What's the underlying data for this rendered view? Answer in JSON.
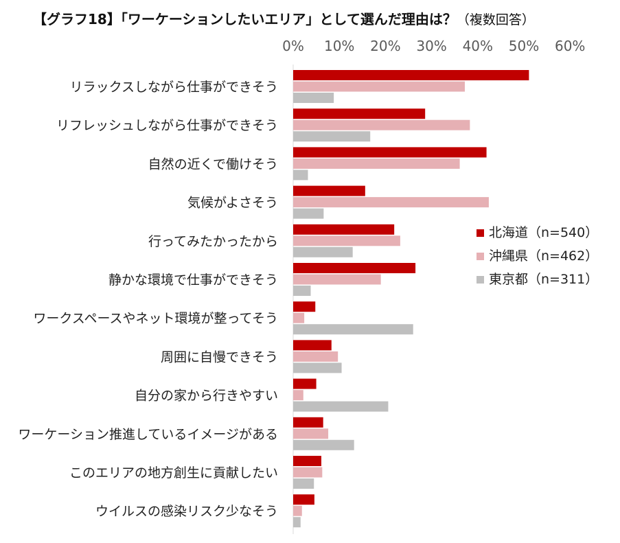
{
  "chart_data": {
    "type": "bar",
    "orientation": "horizontal",
    "title": "【グラフ18】「ワーケーションしたいエリア」として選んだ理由は？",
    "subtitle": "（複数回答）",
    "x_ticks": [
      "0%",
      "10%",
      "20%",
      "30%",
      "40%",
      "50%",
      "60%"
    ],
    "xlim": [
      0,
      60
    ],
    "grid": false,
    "legend_position": "right",
    "categories": [
      "リラックスしながら仕事ができそう",
      "リフレッシュしながら仕事ができそう",
      "自然の近くで働けそう",
      "気候がよさそう",
      "行ってみたかったから",
      "静かな環境で仕事ができそう",
      "ワークスペースやネット環境が整ってそう",
      "周囲に自慢できそう",
      "自分の家から行きやすい",
      "ワーケーション推進しているイメージがある",
      "このエリアの地方創生に貢献したい",
      "ウイルスの感染リスク少なそう"
    ],
    "series": [
      {
        "name": "北海道（n=540）",
        "color": "#C00000",
        "values": [
          51.1,
          28.6,
          41.9,
          15.6,
          21.9,
          26.5,
          4.8,
          8.3,
          5.0,
          6.5,
          6.1,
          4.6
        ]
      },
      {
        "name": "沖縄県（n=462）",
        "color": "#E6B0B4",
        "values": [
          37.2,
          38.3,
          36.1,
          42.4,
          23.2,
          19.0,
          2.4,
          9.7,
          2.2,
          7.6,
          6.3,
          1.9
        ]
      },
      {
        "name": "東京都（n=311）",
        "color": "#BFBFBF",
        "values": [
          8.8,
          16.7,
          3.2,
          6.6,
          12.9,
          3.8,
          26.0,
          10.5,
          20.6,
          13.2,
          4.5,
          1.6
        ]
      }
    ]
  }
}
